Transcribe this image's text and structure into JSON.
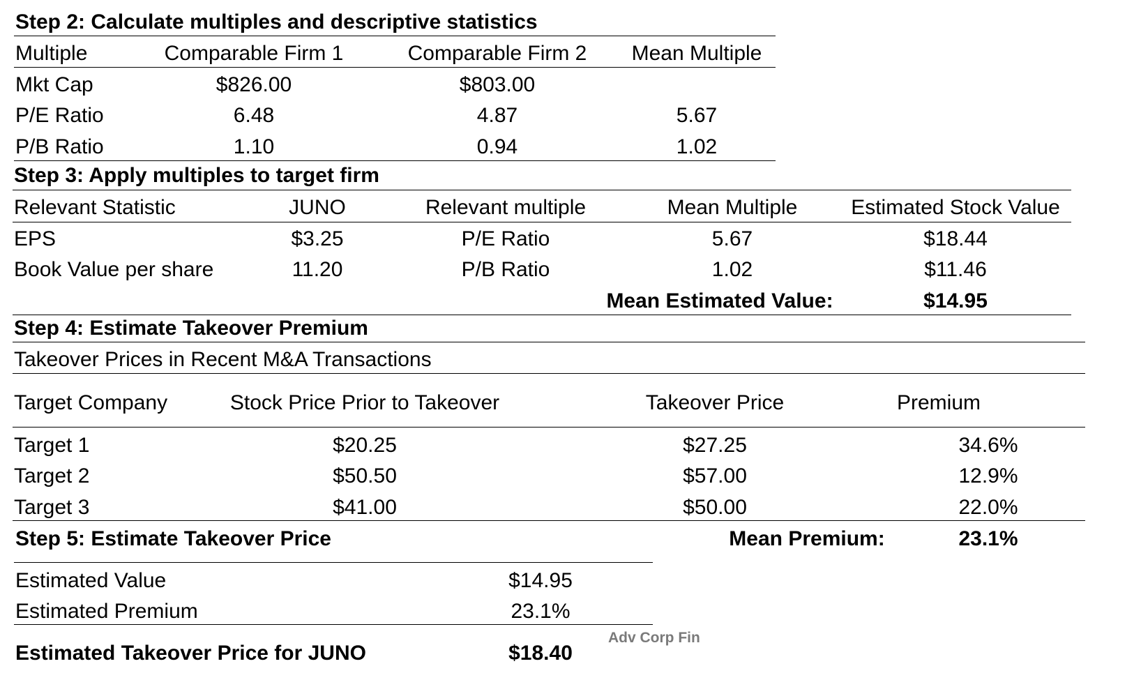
{
  "step2": {
    "title": "Step 2: Calculate multiples and descriptive statistics",
    "headers": [
      "Multiple",
      "Comparable Firm 1",
      "Comparable Firm 2",
      "Mean Multiple"
    ],
    "rows": [
      [
        "Mkt Cap",
        "$826.00",
        "$803.00",
        ""
      ],
      [
        "P/E Ratio",
        "6.48",
        "4.87",
        "5.67"
      ],
      [
        "P/B Ratio",
        "1.10",
        "0.94",
        "1.02"
      ]
    ]
  },
  "step3": {
    "title": "Step 3: Apply multiples to target firm",
    "headers": [
      "Relevant Statistic",
      "JUNO",
      "Relevant multiple",
      "Mean Multiple",
      "Estimated Stock Value"
    ],
    "rows": [
      [
        "EPS",
        "$3.25",
        "P/E Ratio",
        "5.67",
        "$18.44"
      ],
      [
        "Book Value per share",
        "11.20",
        "P/B Ratio",
        "1.02",
        "$11.46"
      ]
    ],
    "mean_label": "Mean Estimated Value:",
    "mean_value": "$14.95"
  },
  "step4": {
    "title": "Step 4: Estimate Takeover Premium",
    "subtitle": "Takeover Prices in Recent M&A Transactions",
    "headers": [
      "Target Company",
      "Stock Price Prior to Takeover",
      "Takeover Price",
      "Premium"
    ],
    "rows": [
      [
        "Target 1",
        "$20.25",
        "$27.25",
        "34.6%"
      ],
      [
        "Target 2",
        "$50.50",
        "$57.00",
        "12.9%"
      ],
      [
        "Target 3",
        "$41.00",
        "$50.00",
        "22.0%"
      ]
    ],
    "mean_label": "Mean Premium:",
    "mean_value": "23.1%"
  },
  "step5": {
    "title": "Step 5: Estimate Takeover Price",
    "rows": [
      [
        "Estimated Value",
        "$14.95"
      ],
      [
        "Estimated Premium",
        "23.1%"
      ]
    ],
    "total_label": "Estimated Takeover Price for JUNO",
    "total_value": "$18.40"
  },
  "watermark": "Adv Corp Fin"
}
